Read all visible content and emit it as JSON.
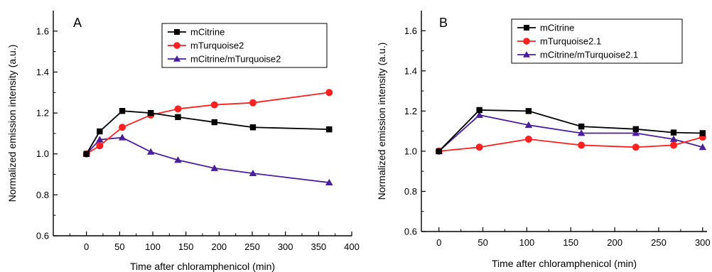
{
  "chart_data": [
    {
      "panel": "A",
      "type": "line",
      "xlabel": "Time after chloramphenicol (min)",
      "ylabel": "Normalized emission intensity (a.u.)",
      "xlim": [
        -50,
        400
      ],
      "ylim": [
        0.6,
        1.7
      ],
      "xticks": [
        0,
        50,
        100,
        150,
        200,
        250,
        300,
        350,
        400
      ],
      "yticks": [
        0.6,
        0.8,
        1.0,
        1.2,
        1.4,
        1.6
      ],
      "legend_position": "top-right",
      "series": [
        {
          "name": "mCitrine",
          "color": "#000000",
          "marker": "square",
          "x": [
            0,
            20,
            54,
            97,
            138,
            193,
            251,
            366
          ],
          "y": [
            1.0,
            1.11,
            1.21,
            1.2,
            1.18,
            1.155,
            1.13,
            1.12
          ]
        },
        {
          "name": "mTurquoise2",
          "color": "#ff2020",
          "marker": "circle",
          "x": [
            0,
            20,
            54,
            97,
            138,
            193,
            251,
            366
          ],
          "y": [
            1.0,
            1.04,
            1.13,
            1.19,
            1.22,
            1.24,
            1.25,
            1.3
          ]
        },
        {
          "name": "mCitrine/mTurquoise2",
          "color": "#4b1e9e",
          "marker": "triangle",
          "x": [
            0,
            20,
            54,
            97,
            138,
            193,
            251,
            366
          ],
          "y": [
            1.0,
            1.07,
            1.08,
            1.01,
            0.97,
            0.93,
            0.905,
            0.86
          ]
        }
      ]
    },
    {
      "panel": "B",
      "type": "line",
      "xlabel": "Time after chloramphenicol (min)",
      "ylabel": "Normalized emission intensity (a.u.)",
      "xlim": [
        -20,
        305
      ],
      "ylim": [
        0.6,
        1.7
      ],
      "xticks": [
        0,
        50,
        100,
        150,
        200,
        250,
        300
      ],
      "yticks": [
        0.6,
        0.8,
        1.0,
        1.2,
        1.4,
        1.6
      ],
      "legend_position": "top-right",
      "series": [
        {
          "name": "mCitrine",
          "color": "#000000",
          "marker": "square",
          "x": [
            0,
            46,
            102,
            162,
            224,
            267,
            300
          ],
          "y": [
            1.0,
            1.205,
            1.2,
            1.123,
            1.11,
            1.093,
            1.09
          ]
        },
        {
          "name": "mTurquoise2.1",
          "color": "#ff2020",
          "marker": "circle",
          "x": [
            0,
            46,
            102,
            162,
            224,
            267,
            300
          ],
          "y": [
            1.0,
            1.02,
            1.06,
            1.03,
            1.02,
            1.03,
            1.07
          ]
        },
        {
          "name": "mCitrine/mTurquoise2.1",
          "color": "#4b1e9e",
          "marker": "triangle",
          "x": [
            0,
            46,
            102,
            162,
            224,
            267,
            300
          ],
          "y": [
            1.0,
            1.18,
            1.13,
            1.09,
            1.09,
            1.06,
            1.02
          ]
        }
      ]
    }
  ]
}
